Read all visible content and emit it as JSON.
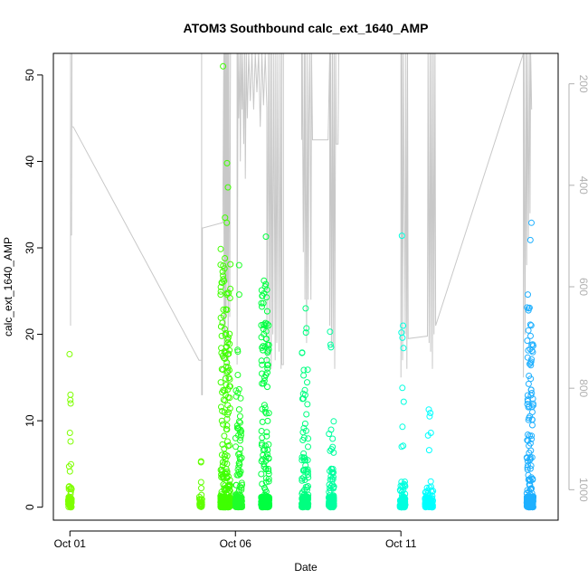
{
  "chart_data": {
    "type": "scatter",
    "title": "ATOM3 Southbound calc_ext_1640_AMP",
    "xlabel": "Date",
    "ylabel": "calc_ext_1640_AMP",
    "x_range_days": [
      "2023-09-30T12:00",
      "2023-10-15T18:00"
    ],
    "xlim": [
      -0.5,
      14.75
    ],
    "ylim": [
      -1.5,
      52.5
    ],
    "y_ticks": [
      0,
      10,
      20,
      30,
      40,
      50
    ],
    "x_ticks": [
      {
        "label": "Oct 01",
        "day": 0
      },
      {
        "label": "Oct 06",
        "day": 5
      },
      {
        "label": "Oct 11",
        "day": 10
      }
    ],
    "right_axis": {
      "ylim": [
        1060,
        140
      ],
      "ticks": [
        200,
        400,
        600,
        800,
        1000
      ],
      "inverted": true,
      "color": "#b0b0b0"
    },
    "line_series": {
      "color": "#c8c8c8",
      "points": [
        [
          0.02,
          52.5
        ],
        [
          0.02,
          21
        ],
        [
          0.02,
          31.5
        ],
        [
          0.05,
          31.5
        ],
        [
          0.06,
          52.5
        ],
        [
          0.06,
          44
        ],
        [
          0.1,
          44
        ],
        [
          3.9,
          17
        ],
        [
          3.98,
          17
        ],
        [
          3.98,
          52.5
        ],
        [
          3.98,
          13
        ],
        [
          4.0,
          13
        ],
        [
          4.0,
          32.3
        ],
        [
          4.02,
          32.3
        ],
        [
          4.6,
          32.9
        ],
        [
          4.62,
          32.9
        ],
        [
          4.65,
          52.5
        ],
        [
          4.66,
          15
        ],
        [
          4.68,
          52.5
        ],
        [
          4.69,
          20
        ],
        [
          4.71,
          52.5
        ],
        [
          4.72,
          22
        ],
        [
          4.74,
          52.5
        ],
        [
          4.75,
          26
        ],
        [
          4.77,
          52.5
        ],
        [
          4.78,
          14
        ],
        [
          4.8,
          52.5
        ],
        [
          4.83,
          22
        ],
        [
          4.85,
          52.5
        ],
        [
          4.0,
          52.5
        ],
        [
          4.2,
          52.5
        ],
        [
          5.05,
          52.5
        ],
        [
          5.05,
          16.5
        ],
        [
          5.08,
          52.5
        ],
        [
          5.1,
          45
        ],
        [
          5.13,
          52.5
        ],
        [
          5.15,
          40
        ],
        [
          5.17,
          52.5
        ],
        [
          5.2,
          46
        ],
        [
          5.22,
          52.5
        ],
        [
          5.25,
          42
        ],
        [
          5.28,
          52.5
        ],
        [
          5.3,
          38
        ],
        [
          5.33,
          52.5
        ],
        [
          5.36,
          45
        ],
        [
          5.4,
          52.5
        ],
        [
          5.45,
          47
        ],
        [
          5.5,
          52.5
        ],
        [
          5.55,
          46
        ],
        [
          5.6,
          52.5
        ],
        [
          5.65,
          48
        ],
        [
          5.7,
          52.5
        ],
        [
          5.75,
          44
        ],
        [
          5.8,
          52.5
        ],
        [
          5.85,
          46.5
        ],
        [
          5.9,
          52.5
        ],
        [
          5.95,
          46.2
        ],
        [
          5.95,
          16.8
        ],
        [
          6.0,
          52.5
        ],
        [
          6.02,
          18
        ],
        [
          6.05,
          52.5
        ],
        [
          6.08,
          16
        ],
        [
          6.1,
          52.5
        ],
        [
          6.13,
          20
        ],
        [
          6.16,
          52.5
        ],
        [
          6.2,
          17
        ],
        [
          6.22,
          52.5
        ],
        [
          6.25,
          19
        ],
        [
          6.28,
          52.5
        ],
        [
          6.32,
          18
        ],
        [
          6.35,
          52.5
        ],
        [
          6.38,
          16
        ],
        [
          6.4,
          52.5
        ],
        [
          6.4,
          16.5
        ],
        [
          6.45,
          16.5
        ],
        [
          6.45,
          52.5
        ],
        [
          7.0,
          52.5
        ],
        [
          7.0,
          42.5
        ],
        [
          7.02,
          52.5
        ],
        [
          7.05,
          29.5
        ],
        [
          7.08,
          52.5
        ],
        [
          7.1,
          24
        ],
        [
          7.12,
          52.5
        ],
        [
          7.15,
          19
        ],
        [
          7.18,
          52.5
        ],
        [
          7.2,
          24
        ],
        [
          7.22,
          45
        ],
        [
          7.25,
          52.5
        ],
        [
          7.28,
          24
        ],
        [
          7.3,
          52.5
        ],
        [
          7.33,
          42.5
        ],
        [
          7.35,
          42.5
        ],
        [
          7.8,
          42.5
        ],
        [
          7.85,
          52.5
        ],
        [
          7.85,
          21
        ],
        [
          7.88,
          52.5
        ],
        [
          7.9,
          18.5
        ],
        [
          7.93,
          52.5
        ],
        [
          7.95,
          19
        ],
        [
          7.98,
          52.5
        ],
        [
          8.0,
          16
        ],
        [
          8.03,
          52.5
        ],
        [
          8.05,
          42
        ],
        [
          8.1,
          42
        ],
        [
          8.12,
          52.5
        ],
        [
          10.0,
          52.5
        ],
        [
          10.0,
          15
        ],
        [
          10.03,
          52.5
        ],
        [
          10.05,
          17
        ],
        [
          10.08,
          52.5
        ],
        [
          10.1,
          36
        ],
        [
          10.13,
          20
        ],
        [
          10.15,
          52.5
        ],
        [
          10.18,
          16
        ],
        [
          10.2,
          52.5
        ],
        [
          10.22,
          19.5
        ],
        [
          10.8,
          19.8
        ],
        [
          10.82,
          52.5
        ],
        [
          10.85,
          19
        ],
        [
          10.88,
          52.5
        ],
        [
          10.9,
          18
        ],
        [
          10.93,
          52.5
        ],
        [
          10.95,
          16
        ],
        [
          10.98,
          52.5
        ],
        [
          11.0,
          20
        ],
        [
          11.03,
          52.5
        ],
        [
          11.05,
          21
        ],
        [
          13.7,
          52.5
        ],
        [
          13.7,
          15
        ],
        [
          13.72,
          52.5
        ],
        [
          13.75,
          20
        ],
        [
          13.78,
          52.5
        ],
        [
          13.8,
          28
        ],
        [
          13.82,
          52.5
        ],
        [
          13.85,
          31
        ],
        [
          13.88,
          52.5
        ],
        [
          13.9,
          34
        ],
        [
          13.92,
          52.5
        ],
        [
          13.95,
          46
        ]
      ]
    },
    "point_series": [
      {
        "color": "#7fff00",
        "day": 0.0,
        "spread": 0.05,
        "max_y": 17.7,
        "dense_max": 5,
        "n": 80,
        "outliers": [
          17.7,
          13,
          12.4,
          12,
          8.6,
          7.6
        ]
      },
      {
        "color": "#60ff00",
        "day": 3.95,
        "spread": 0.04,
        "max_y": 5.3,
        "dense_max": 1.5,
        "n": 25,
        "outliers": [
          5.3,
          5.2,
          2.9,
          2.2
        ]
      },
      {
        "color": "#3fff00",
        "day": 4.7,
        "spread": 0.15,
        "max_y": 51,
        "dense_max": 30,
        "n": 420,
        "outliers": [
          51,
          39.8,
          37,
          33.5,
          32.9
        ]
      },
      {
        "color": "#1fff2a",
        "day": 5.1,
        "spread": 0.1,
        "max_y": 28,
        "dense_max": 13.8,
        "n": 180,
        "outliers": [
          28,
          24.6,
          18.2,
          18,
          15.3
        ]
      },
      {
        "color": "#00ff40",
        "day": 5.9,
        "spread": 0.12,
        "max_y": 31.3,
        "dense_max": 26,
        "n": 260,
        "outliers": [
          31.3,
          26.2,
          25.8
        ]
      },
      {
        "color": "#00ff80",
        "day": 7.1,
        "spread": 0.1,
        "max_y": 23,
        "dense_max": 18,
        "n": 180,
        "outliers": [
          23,
          20.7,
          20.2
        ]
      },
      {
        "color": "#00ff9f",
        "day": 7.9,
        "spread": 0.08,
        "max_y": 20.3,
        "dense_max": 10,
        "n": 140,
        "outliers": [
          20.3,
          18.8,
          18.5
        ]
      },
      {
        "color": "#00ffdf",
        "day": 10.05,
        "spread": 0.08,
        "max_y": 31.4,
        "dense_max": 3,
        "n": 90,
        "outliers": [
          31.4,
          21,
          20.2,
          19.6,
          18.4,
          13.8,
          12.2,
          9.3,
          7.1,
          7
        ]
      },
      {
        "color": "#00ffff",
        "day": 10.85,
        "spread": 0.12,
        "max_y": 11.3,
        "dense_max": 3,
        "n": 110,
        "outliers": [
          11.3,
          10.9,
          10.5,
          8.6,
          8.3,
          6.6
        ]
      },
      {
        "color": "#1fb0ff",
        "day": 13.9,
        "spread": 0.1,
        "max_y": 32.9,
        "dense_max": 25,
        "n": 260,
        "outliers": [
          32.9,
          30.9
        ]
      }
    ]
  }
}
